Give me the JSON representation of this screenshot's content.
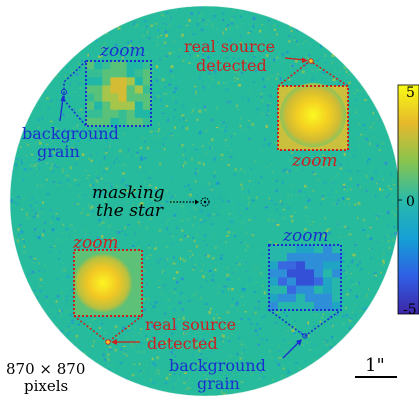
{
  "labels": {
    "zoom": "zoom",
    "real_source_1": "real source",
    "detected": "detected",
    "background": "background",
    "grain": "grain",
    "masking": "masking",
    "the_star": "the star",
    "pixels_dims": "870 × 870",
    "pixels_word": "pixels",
    "scale": "1\""
  },
  "colorbar": {
    "ticks": [
      "5",
      "0",
      "-5"
    ],
    "colors": [
      "#3e26a8",
      "#2f60e5",
      "#15a1d4",
      "#2bbaa9",
      "#88c44e",
      "#e6b92c",
      "#f9fb15"
    ]
  },
  "colors": {
    "zoom_blue": "#1a2fd0",
    "zoom_red": "#cc1f1f",
    "field_base": "#22b9a0",
    "text_black": "#000000"
  }
}
